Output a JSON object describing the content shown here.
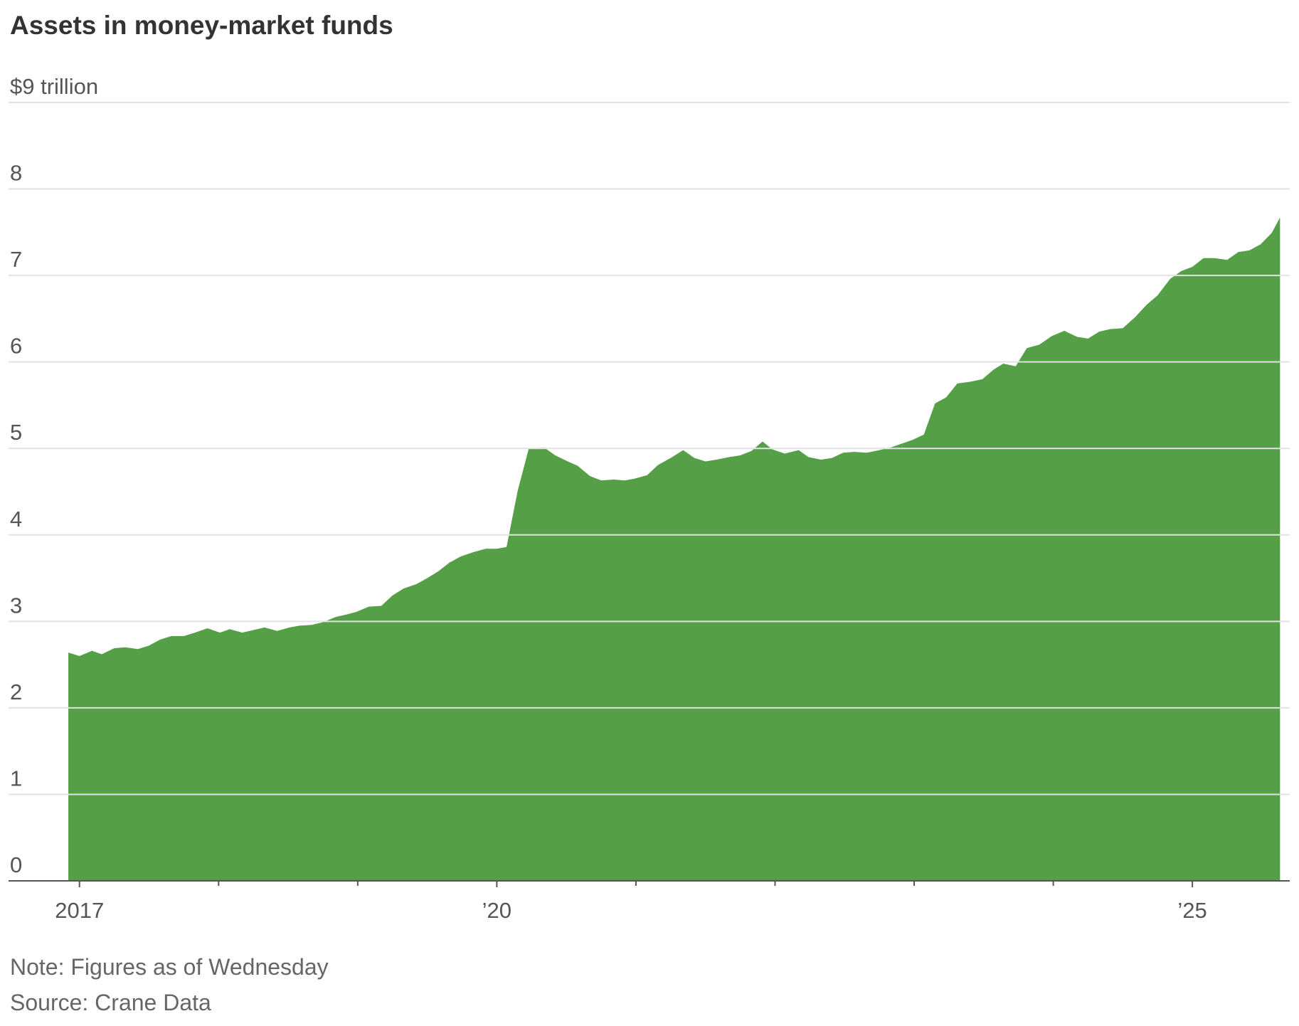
{
  "chart_data": {
    "type": "area",
    "title": "Assets in money-market funds",
    "notes": [
      "Note: Figures as of Wednesday",
      "Source: Crane Data"
    ],
    "color": "#559f47",
    "grid": true,
    "xlim": [
      2016.49,
      2025.7
    ],
    "xticks": [
      2017,
      {
        "value": 2020,
        "label": "’20"
      },
      {
        "value": 2025,
        "label": "’25"
      }
    ],
    "xticks_minor": [
      2018,
      2019,
      2021,
      2022,
      2023,
      2024
    ],
    "ylim": [
      0,
      9
    ],
    "yticks": [
      0,
      1,
      2,
      3,
      4,
      5,
      6,
      7,
      8,
      {
        "value": 9,
        "label": "$9 trillion"
      }
    ],
    "x": [
      2016.92,
      2017.0,
      2017.09,
      2017.16,
      2017.25,
      2017.33,
      2017.42,
      2017.5,
      2017.58,
      2017.66,
      2017.75,
      2017.83,
      2017.92,
      2018.01,
      2018.08,
      2018.17,
      2018.25,
      2018.33,
      2018.42,
      2018.51,
      2018.58,
      2018.67,
      2018.75,
      2018.84,
      2018.92,
      2018.99,
      2019.08,
      2019.17,
      2019.25,
      2019.33,
      2019.42,
      2019.5,
      2019.58,
      2019.66,
      2019.74,
      2019.83,
      2019.92,
      2020.0,
      2020.07,
      2020.15,
      2020.23,
      2020.34,
      2020.42,
      2020.51,
      2020.58,
      2020.67,
      2020.75,
      2020.84,
      2020.92,
      2020.99,
      2021.08,
      2021.16,
      2021.25,
      2021.34,
      2021.42,
      2021.5,
      2021.58,
      2021.67,
      2021.75,
      2021.83,
      2021.91,
      2021.98,
      2022.07,
      2022.17,
      2022.24,
      2022.33,
      2022.41,
      2022.49,
      2022.57,
      2022.66,
      2022.75,
      2022.83,
      2022.92,
      2022.99,
      2023.07,
      2023.15,
      2023.23,
      2023.31,
      2023.4,
      2023.49,
      2023.57,
      2023.64,
      2023.73,
      2023.81,
      2023.9,
      2023.99,
      2024.08,
      2024.17,
      2024.25,
      2024.33,
      2024.41,
      2024.5,
      2024.59,
      2024.67,
      2024.75,
      2024.84,
      2024.92,
      2025.0,
      2025.08,
      2025.16,
      2025.25,
      2025.33,
      2025.41,
      2025.49,
      2025.57,
      2025.63
    ],
    "values": [
      2.64,
      2.6,
      2.66,
      2.62,
      2.69,
      2.7,
      2.68,
      2.72,
      2.79,
      2.83,
      2.83,
      2.87,
      2.92,
      2.87,
      2.91,
      2.87,
      2.9,
      2.93,
      2.89,
      2.93,
      2.95,
      2.96,
      2.99,
      3.05,
      3.08,
      3.11,
      3.17,
      3.18,
      3.3,
      3.38,
      3.43,
      3.5,
      3.58,
      3.68,
      3.75,
      3.8,
      3.84,
      3.84,
      3.86,
      4.51,
      5.0,
      5.01,
      4.92,
      4.85,
      4.8,
      4.68,
      4.63,
      4.64,
      4.63,
      4.65,
      4.69,
      4.81,
      4.89,
      4.98,
      4.89,
      4.85,
      4.87,
      4.9,
      4.92,
      4.97,
      5.08,
      4.99,
      4.94,
      4.98,
      4.9,
      4.87,
      4.89,
      4.95,
      4.96,
      4.95,
      4.98,
      5.01,
      5.06,
      5.1,
      5.16,
      5.52,
      5.59,
      5.75,
      5.77,
      5.8,
      5.91,
      5.98,
      5.95,
      6.16,
      6.2,
      6.3,
      6.36,
      6.29,
      6.27,
      6.35,
      6.38,
      6.39,
      6.52,
      6.66,
      6.77,
      6.96,
      7.05,
      7.1,
      7.2,
      7.2,
      7.18,
      7.27,
      7.29,
      7.36,
      7.49,
      7.67
    ]
  }
}
